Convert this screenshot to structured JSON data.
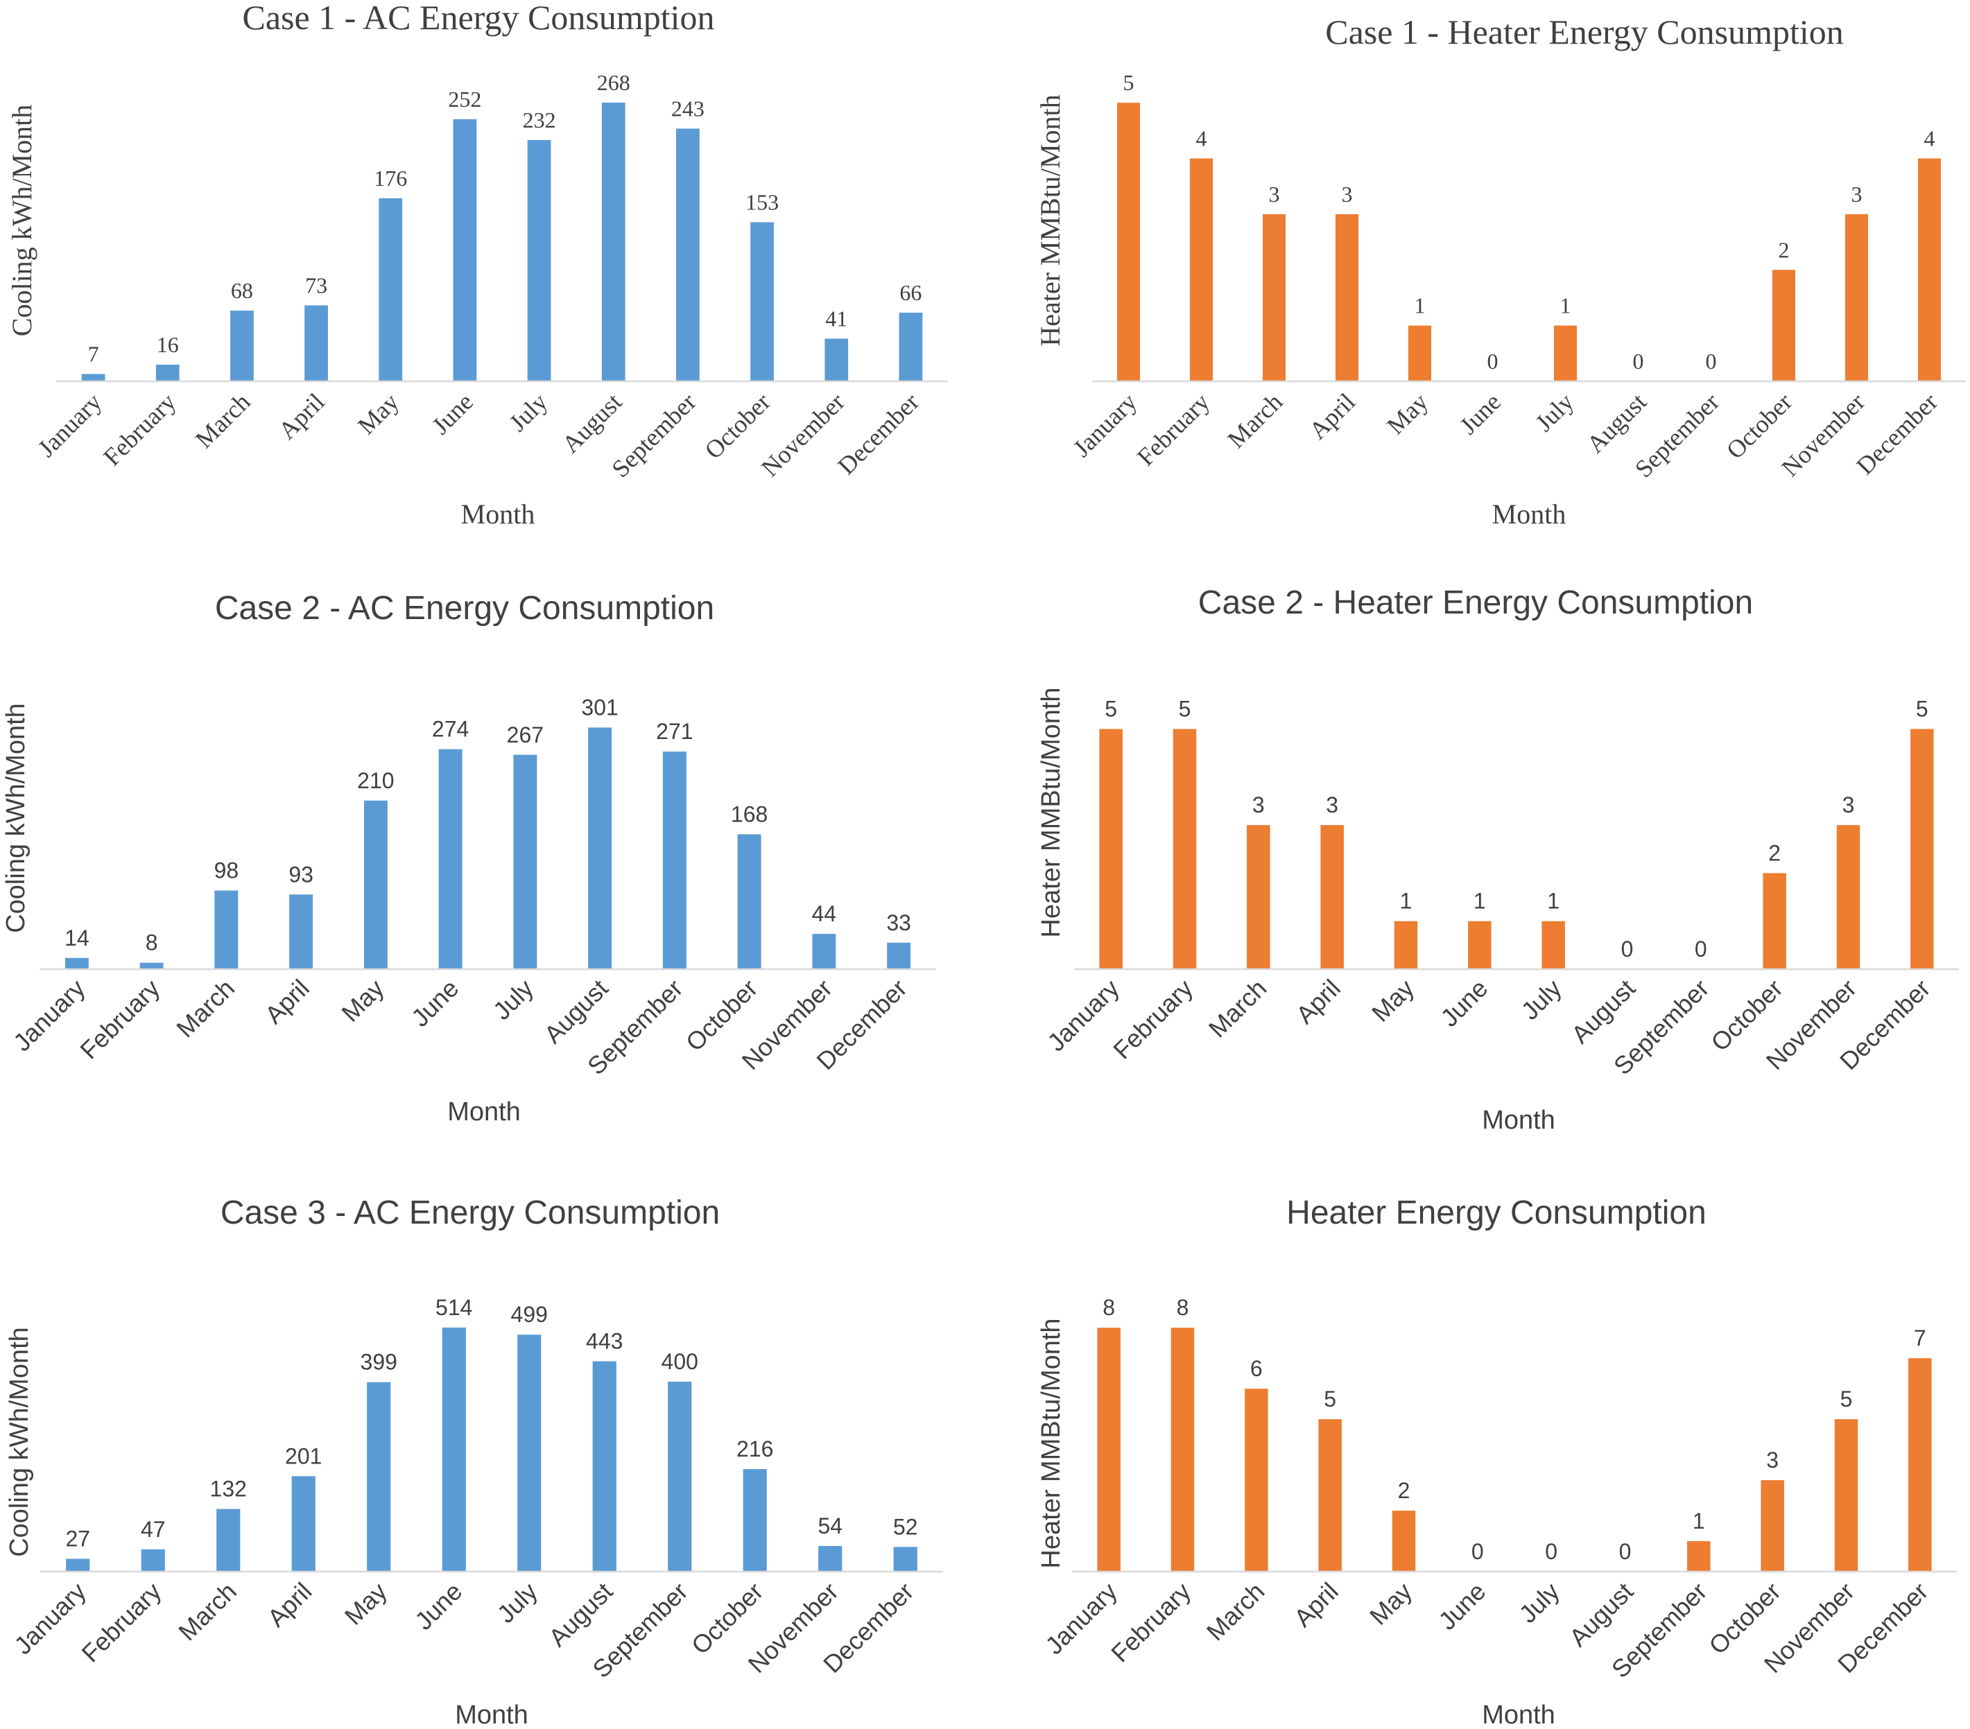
{
  "chart_data": [
    {
      "type": "bar",
      "title": "Case 1 - AC Energy Consumption",
      "xlabel": "Month",
      "ylabel": "Cooling kWh/Month",
      "categories": [
        "January",
        "February",
        "March",
        "April",
        "May",
        "June",
        "July",
        "August",
        "September",
        "October",
        "November",
        "December"
      ],
      "values": [
        7,
        16,
        68,
        73,
        176,
        252,
        232,
        268,
        243,
        153,
        41,
        66
      ],
      "ylim": [
        0,
        300
      ],
      "color": "#5b9bd5",
      "grid": false,
      "legend": "none",
      "font": "serif"
    },
    {
      "type": "bar",
      "title": "Case 1 - Heater Energy Consumption",
      "xlabel": "Month",
      "ylabel": "Heater MMBtu/Month",
      "categories": [
        "January",
        "February",
        "March",
        "April",
        "May",
        "June",
        "July",
        "August",
        "September",
        "October",
        "November",
        "December"
      ],
      "values": [
        5,
        4,
        3,
        3,
        1,
        0,
        1,
        0,
        0,
        2,
        3,
        4
      ],
      "ylim": [
        0,
        5.6
      ],
      "color": "#ed7d31",
      "grid": false,
      "legend": "none",
      "font": "serif"
    },
    {
      "type": "bar",
      "title": "Case 2 - AC Energy Consumption",
      "xlabel": "Month",
      "ylabel": "Cooling kWh/Month",
      "categories": [
        "January",
        "February",
        "March",
        "April",
        "May",
        "June",
        "July",
        "August",
        "September",
        "October",
        "November",
        "December"
      ],
      "values": [
        14,
        8,
        98,
        93,
        210,
        274,
        267,
        301,
        271,
        168,
        44,
        33
      ],
      "ylim": [
        0,
        335
      ],
      "color": "#5b9bd5",
      "grid": false,
      "legend": "none",
      "font": "sans"
    },
    {
      "type": "bar",
      "title": "Case 2 - Heater Energy Consumption",
      "xlabel": "Month",
      "ylabel": "Heater MMBtu/Month",
      "categories": [
        "January",
        "February",
        "March",
        "April",
        "May",
        "June",
        "July",
        "August",
        "September",
        "October",
        "November",
        "December"
      ],
      "values": [
        5,
        5,
        3,
        3,
        1,
        1,
        1,
        0,
        0,
        2,
        3,
        5
      ],
      "ylim": [
        0,
        5.6
      ],
      "color": "#ed7d31",
      "grid": false,
      "legend": "none",
      "font": "sans"
    },
    {
      "type": "bar",
      "title": "Case 3 - AC Energy Consumption",
      "xlabel": "Month",
      "ylabel": "Cooling kWh/Month",
      "categories": [
        "January",
        "February",
        "March",
        "April",
        "May",
        "June",
        "July",
        "August",
        "September",
        "October",
        "November",
        "December"
      ],
      "values": [
        27,
        47,
        132,
        201,
        399,
        514,
        499,
        443,
        400,
        216,
        54,
        52
      ],
      "ylim": [
        0,
        565
      ],
      "color": "#5b9bd5",
      "grid": false,
      "legend": "none",
      "font": "sans"
    },
    {
      "type": "bar",
      "title": "Heater Energy Consumption",
      "xlabel": "Month",
      "ylabel": "Heater MMBtu/Month",
      "categories": [
        "January",
        "February",
        "March",
        "April",
        "May",
        "June",
        "July",
        "August",
        "September",
        "October",
        "November",
        "December"
      ],
      "values": [
        8,
        8,
        6,
        5,
        2,
        0,
        0,
        0,
        1,
        3,
        5,
        7
      ],
      "ylim": [
        0,
        8.8
      ],
      "color": "#ed7d31",
      "grid": false,
      "legend": "none",
      "font": "sans"
    }
  ]
}
